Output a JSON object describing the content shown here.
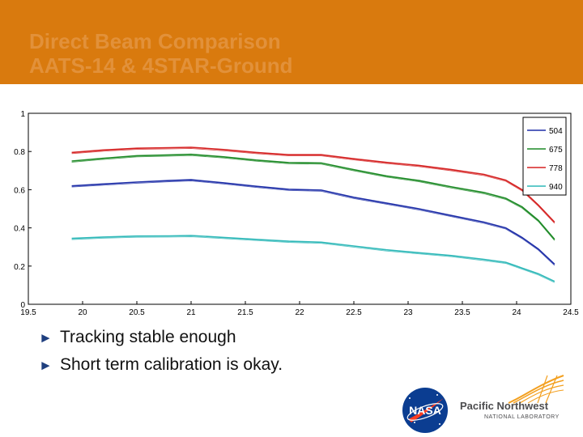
{
  "header": {
    "title_line1": "Direct Beam Comparison",
    "title_line2": "AATS-14 & 4STAR-Ground",
    "bg_color": "#d97a0e"
  },
  "bullets": [
    {
      "icon": "triangle-right-icon",
      "text": "Tracking stable enough"
    },
    {
      "icon": "triangle-right-icon",
      "text": "Short term calibration is okay."
    }
  ],
  "logos": {
    "nasa": {
      "text": "NASA"
    },
    "pnnl": {
      "name": "Pacific Northwest",
      "sub": "NATIONAL LABORATORY",
      "accent": "#f3a020"
    }
  },
  "chart_data": {
    "type": "line",
    "title": "",
    "xlabel": "",
    "ylabel": "",
    "xlim": [
      19.5,
      24.5
    ],
    "ylim": [
      0,
      1
    ],
    "xticks": [
      19.5,
      20,
      20.5,
      21,
      21.5,
      22,
      22.5,
      23,
      23.5,
      24,
      24.5
    ],
    "xtick_labels": [
      "19.5",
      "20",
      "20.5",
      "21",
      "21.5",
      "22",
      "22.5",
      "23",
      "23.5",
      "24",
      "24.5"
    ],
    "yticks": [
      0,
      0.2,
      0.4,
      0.6,
      0.8,
      1
    ],
    "ytick_labels": [
      "0",
      "0.2",
      "0.4",
      "0.6",
      "0.8",
      "1"
    ],
    "grid": false,
    "legend_position": "top-right",
    "x": [
      19.9,
      20.2,
      20.5,
      20.8,
      21.0,
      21.3,
      21.6,
      21.9,
      22.2,
      22.5,
      22.8,
      23.1,
      23.4,
      23.7,
      23.9,
      24.05,
      24.2,
      24.35
    ],
    "series": [
      {
        "name": "504",
        "color": "#1f2fa8",
        "values": [
          0.62,
          0.63,
          0.64,
          0.648,
          0.652,
          0.636,
          0.618,
          0.602,
          0.598,
          0.56,
          0.53,
          0.5,
          0.465,
          0.43,
          0.4,
          0.35,
          0.29,
          0.21
        ]
      },
      {
        "name": "675",
        "color": "#1d8a26",
        "values": [
          0.75,
          0.765,
          0.778,
          0.782,
          0.785,
          0.772,
          0.755,
          0.742,
          0.74,
          0.705,
          0.672,
          0.648,
          0.615,
          0.585,
          0.555,
          0.51,
          0.44,
          0.34
        ]
      },
      {
        "name": "778",
        "color": "#d52222",
        "values": [
          0.795,
          0.808,
          0.817,
          0.82,
          0.822,
          0.81,
          0.795,
          0.783,
          0.783,
          0.762,
          0.743,
          0.727,
          0.705,
          0.68,
          0.65,
          0.6,
          0.52,
          0.43
        ]
      },
      {
        "name": "940",
        "color": "#2eb8b8",
        "values": [
          0.345,
          0.352,
          0.357,
          0.358,
          0.36,
          0.35,
          0.34,
          0.33,
          0.325,
          0.305,
          0.285,
          0.27,
          0.255,
          0.235,
          0.22,
          0.19,
          0.16,
          0.12
        ]
      }
    ]
  }
}
